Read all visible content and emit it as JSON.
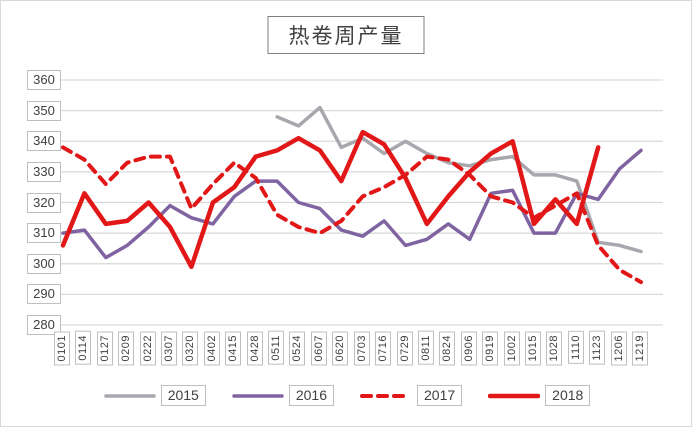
{
  "page": {
    "background": "#ffffff",
    "frame_border": "#d9d9d9",
    "text_color": "#404040",
    "gridline_color": "#d9d9d9",
    "tick_box_border": "#bfbfbf",
    "title_box_border": "#7f7f7f"
  },
  "chart_data": {
    "type": "line",
    "title": "热卷周产量",
    "xlabel": "",
    "ylabel": "",
    "ylim": [
      280,
      360
    ],
    "ytick_step": 10,
    "grid": "horizontal",
    "legend_position": "bottom",
    "categories": [
      "0101",
      "0114",
      "0127",
      "0209",
      "0222",
      "0307",
      "0320",
      "0402",
      "0415",
      "0428",
      "0511",
      "0524",
      "0607",
      "0620",
      "0703",
      "0716",
      "0729",
      "0811",
      "0824",
      "0906",
      "0919",
      "1002",
      "1015",
      "1028",
      "1110",
      "1123",
      "1206",
      "1219"
    ],
    "series": [
      {
        "name": "2015",
        "color": "#a8a7ad",
        "style": "solid",
        "width": 3.5,
        "values": [
          null,
          null,
          null,
          null,
          null,
          null,
          null,
          null,
          null,
          null,
          348,
          345,
          351,
          338,
          341,
          336,
          340,
          336,
          333,
          332,
          334,
          335,
          329,
          329,
          327,
          307,
          306,
          304
        ]
      },
      {
        "name": "2016",
        "color": "#8064a2",
        "style": "solid",
        "width": 3.5,
        "values": [
          310,
          311,
          302,
          306,
          312,
          319,
          315,
          313,
          322,
          327,
          327,
          320,
          318,
          311,
          309,
          314,
          306,
          308,
          313,
          308,
          323,
          324,
          310,
          310,
          323,
          321,
          331,
          337
        ]
      },
      {
        "name": "2017",
        "color": "#e21717",
        "style": "dashed",
        "width": 4,
        "values": [
          338,
          334,
          326,
          333,
          335,
          335,
          318,
          326,
          333,
          328,
          316,
          312,
          310,
          314,
          322,
          325,
          329,
          335,
          334,
          329,
          322,
          320,
          315,
          319,
          323,
          306,
          298,
          294
        ]
      },
      {
        "name": "2018",
        "color": "#e21717",
        "style": "solid",
        "width": 4.5,
        "values": [
          306,
          323,
          313,
          314,
          320,
          312,
          299,
          320,
          325,
          335,
          337,
          341,
          337,
          327,
          343,
          339,
          328,
          313,
          322,
          330,
          336,
          340,
          313,
          321,
          313,
          338,
          null,
          null
        ]
      }
    ]
  }
}
